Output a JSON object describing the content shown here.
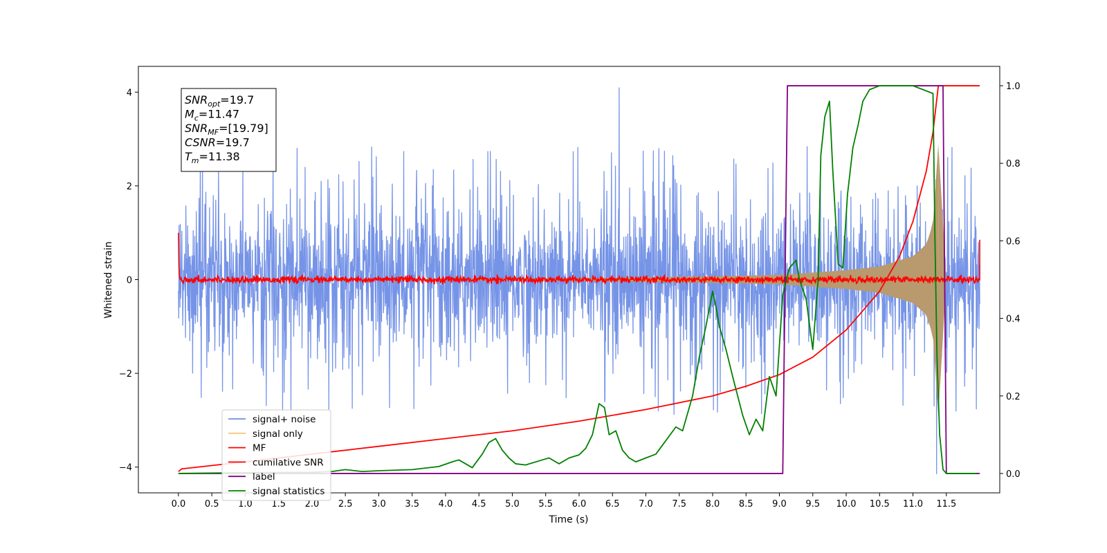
{
  "chart_data": {
    "type": "line",
    "xlabel": "Time (s)",
    "ylabel": "Whitened strain",
    "xlim": [
      -0.6,
      12.3
    ],
    "ylim_left": [
      -4.55,
      4.55
    ],
    "ylim_right": [
      -0.05,
      1.05
    ],
    "x_ticks": [
      0.0,
      0.5,
      1.0,
      1.5,
      2.0,
      2.5,
      3.0,
      3.5,
      4.0,
      4.5,
      5.0,
      5.5,
      6.0,
      6.5,
      7.0,
      7.5,
      8.0,
      8.5,
      9.0,
      9.5,
      10.0,
      10.5,
      11.0,
      11.5
    ],
    "x_tick_labels": [
      "0.0",
      "0.5",
      "1.0",
      "1.5",
      "2.0",
      "2.5",
      "3.0",
      "3.5",
      "4.0",
      "4.5",
      "5.0",
      "5.5",
      "6.0",
      "6.5",
      "7.0",
      "7.5",
      "8.0",
      "8.5",
      "9.0",
      "9.5",
      "10.0",
      "10.5",
      "11.0",
      "11.5"
    ],
    "y_left_ticks": [
      -4,
      -2,
      0,
      2,
      4
    ],
    "y_left_tick_labels": [
      "−4",
      "−2",
      "0",
      "2",
      "4"
    ],
    "y_right_ticks": [
      0.0,
      0.2,
      0.4,
      0.6,
      0.8,
      1.0
    ],
    "y_right_tick_labels": [
      "0.0",
      "0.2",
      "0.4",
      "0.6",
      "0.8",
      "1.0"
    ],
    "grid": false,
    "legend_placement": "lower-left",
    "annotation": [
      {
        "base": "SNR",
        "sub": "opt",
        "rest": "=19.7"
      },
      {
        "base": "M",
        "sub": "c",
        "rest": "=11.47"
      },
      {
        "base": "SNR",
        "sub": "MF",
        "rest": "=[19.79]"
      },
      {
        "base": "CSNR",
        "sub": "",
        "rest": "=19.7"
      },
      {
        "base": "T",
        "sub": "m",
        "rest": "=11.38"
      }
    ],
    "series": [
      {
        "name": "signal+ noise",
        "color": "#6f8ee6",
        "axis": "left",
        "kind": "noisy",
        "x_range": [
          0.0,
          12.0
        ],
        "amplitude_envelope": [
          -2.0,
          2.0
        ],
        "peak_values": [
          4.1,
          -4.15
        ]
      },
      {
        "name": "signal only",
        "color": "#f5c87a",
        "axis": "left",
        "kind": "chirp",
        "x": [
          0.0,
          6.0,
          8.0,
          9.0,
          10.0,
          10.5,
          11.0,
          11.2,
          11.3,
          11.38
        ],
        "envelope": [
          0.0,
          0.03,
          0.07,
          0.1,
          0.2,
          0.28,
          0.5,
          0.75,
          1.2,
          2.9
        ]
      },
      {
        "name": "MF",
        "color": "#ff0000",
        "axis": "left",
        "kind": "noisy",
        "x_range": [
          0.0,
          12.0
        ],
        "amplitude_envelope": [
          -0.1,
          0.1
        ],
        "endpoints": [
          1.0,
          0.85
        ]
      },
      {
        "name": "cumilative SNR",
        "color": "#ff0000",
        "axis": "right",
        "x": [
          0.0,
          0.05,
          1.0,
          2.0,
          3.0,
          4.0,
          5.0,
          6.0,
          7.0,
          8.0,
          8.5,
          9.0,
          9.5,
          10.0,
          10.5,
          10.8,
          11.0,
          11.2,
          11.3,
          11.38,
          12.0
        ],
        "y": [
          0.005,
          0.012,
          0.03,
          0.05,
          0.07,
          0.09,
          0.11,
          0.135,
          0.165,
          0.2,
          0.225,
          0.255,
          0.3,
          0.37,
          0.47,
          0.56,
          0.65,
          0.78,
          0.88,
          1.0,
          1.0
        ]
      },
      {
        "name": "label",
        "color": "#800080",
        "axis": "right",
        "x": [
          0.0,
          9.05,
          9.12,
          11.45,
          11.5,
          12.0
        ],
        "y": [
          0.0,
          0.0,
          1.0,
          1.0,
          0.0,
          0.0
        ]
      },
      {
        "name": "signal statistics",
        "color": "#008000",
        "axis": "right",
        "x": [
          0.0,
          1.0,
          2.0,
          2.3,
          2.5,
          2.75,
          3.0,
          3.5,
          3.9,
          4.1,
          4.2,
          4.3,
          4.4,
          4.55,
          4.65,
          4.75,
          4.85,
          4.95,
          5.05,
          5.2,
          5.45,
          5.55,
          5.7,
          5.85,
          6.0,
          6.1,
          6.2,
          6.3,
          6.38,
          6.45,
          6.55,
          6.65,
          6.75,
          6.85,
          7.0,
          7.15,
          7.3,
          7.45,
          7.55,
          7.7,
          7.8,
          7.9,
          8.0,
          8.05,
          8.1,
          8.2,
          8.3,
          8.45,
          8.55,
          8.65,
          8.75,
          8.85,
          8.95,
          9.05,
          9.15,
          9.25,
          9.3,
          9.4,
          9.5,
          9.58,
          9.62,
          9.68,
          9.75,
          9.8,
          9.88,
          9.95,
          10.02,
          10.1,
          10.18,
          10.25,
          10.35,
          10.5,
          10.7,
          11.0,
          11.3,
          11.33,
          11.36,
          11.4,
          11.45,
          11.5,
          11.95
        ],
        "y": [
          0.0,
          0.002,
          0.003,
          0.005,
          0.01,
          0.005,
          0.007,
          0.01,
          0.018,
          0.03,
          0.035,
          0.025,
          0.015,
          0.05,
          0.08,
          0.09,
          0.06,
          0.04,
          0.025,
          0.022,
          0.035,
          0.04,
          0.025,
          0.04,
          0.048,
          0.065,
          0.1,
          0.18,
          0.17,
          0.1,
          0.11,
          0.06,
          0.04,
          0.03,
          0.04,
          0.05,
          0.085,
          0.12,
          0.11,
          0.2,
          0.3,
          0.38,
          0.47,
          0.43,
          0.38,
          0.32,
          0.25,
          0.15,
          0.1,
          0.14,
          0.11,
          0.25,
          0.2,
          0.46,
          0.53,
          0.55,
          0.5,
          0.45,
          0.32,
          0.5,
          0.82,
          0.92,
          0.96,
          0.78,
          0.54,
          0.53,
          0.72,
          0.84,
          0.9,
          0.96,
          0.99,
          1.0,
          1.0,
          1.0,
          0.98,
          0.6,
          0.3,
          0.1,
          0.01,
          0.0,
          0.0
        ]
      }
    ]
  }
}
